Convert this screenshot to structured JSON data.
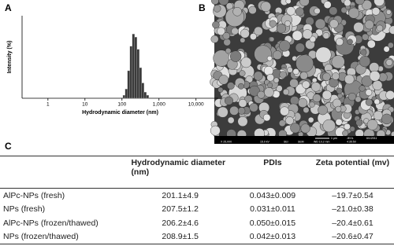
{
  "panels": {
    "a": "A",
    "b": "B",
    "c": "C"
  },
  "chart_data": {
    "type": "histogram",
    "xlabel": "Hydrodynamic diameter (nm)",
    "ylabel": "Intensity (%)",
    "log_x": true,
    "xlim": [
      0.2,
      40000
    ],
    "ylim": [
      0,
      27
    ],
    "xticks": [
      1,
      10,
      100,
      {
        "value": 1000,
        "label": "1,000"
      },
      {
        "value": 10000,
        "label": "10,000"
      }
    ],
    "bins": [
      106,
      122,
      141,
      164,
      190,
      220,
      255,
      295,
      342,
      396,
      459,
      531
    ],
    "counts": [
      1,
      3,
      9,
      17,
      21,
      20,
      16,
      10,
      5,
      2,
      1
    ],
    "color": "#3a3a3a"
  },
  "sem": {
    "texts": [
      "1 μm",
      "JEOL",
      "6/1/2011",
      "X 25,000",
      "15.0 kV",
      "SEI",
      "SEM",
      "WD 10.2 mm",
      "4:35:50"
    ]
  },
  "table": {
    "header": [
      "",
      "Hydrodynamic diameter (nm)",
      "PDIs",
      "Zeta potential (mv)"
    ],
    "rows": [
      [
        "AlPc-NPs (fresh)",
        "201.1±4.9",
        "0.043±0.009",
        "–19.7±0.54"
      ],
      [
        "NPs (fresh)",
        "207.5±1.2",
        "0.031±0.011",
        "–21.0±0.38"
      ],
      [
        "AlPc-NPs (frozen/thawed)",
        "206.2±4.6",
        "0.050±0.015",
        "–20.4±0.61"
      ],
      [
        "NPs (frozen/thawed)",
        "208.9±1.5",
        "0.042±0.013",
        "–20.6±0.47"
      ]
    ]
  }
}
